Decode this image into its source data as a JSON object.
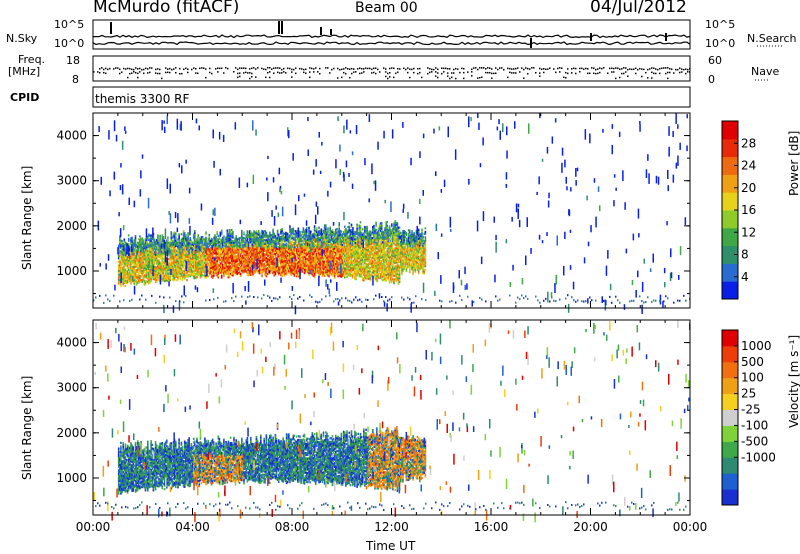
{
  "header": {
    "station": "McMurdo (fitACF)",
    "beam": "Beam 00",
    "date": "04/Jul/2012"
  },
  "params": {
    "nsky_label": "N.Sky",
    "nsearch_label": "N.Search",
    "nsky_ticks": [
      "10^5",
      "10^0"
    ],
    "nsearch_ticks": [
      "10^5",
      "10^0"
    ],
    "freq_label_1": "Freq.",
    "freq_label_2": "[MHz]",
    "freq_ticks": [
      "18",
      "8"
    ],
    "nave_label": "Nave",
    "nave_ticks": [
      "60",
      "0"
    ],
    "cpid_label": "CPID",
    "cpid_text": "themis 3300 RF"
  },
  "chart_data": [
    {
      "type": "heatmap",
      "panel": "power",
      "title": "",
      "xlabel": "Time UT",
      "ylabel": "Slant Range [km]",
      "x_ticks": [
        "00:00",
        "04:00",
        "08:00",
        "12:00",
        "16:00",
        "20:00",
        "00:00"
      ],
      "y_ticks": [
        "1000",
        "2000",
        "3000",
        "4000"
      ],
      "ylim": [
        180,
        4500
      ],
      "colorbar": {
        "label": "Power [dB]",
        "ticks": [
          "4",
          "8",
          "12",
          "16",
          "20",
          "24",
          "28"
        ],
        "colors": [
          "#0a1fe6",
          "#2a6bd0",
          "#2e8f6a",
          "#3fa745",
          "#8fcc2a",
          "#e6d21a",
          "#f0a015",
          "#ee6a10",
          "#e82a08",
          "#e00000"
        ]
      },
      "echo_region": {
        "time_start": "01:00",
        "time_end": "13:20",
        "range_km": [
          600,
          2200
        ]
      }
    },
    {
      "type": "heatmap",
      "panel": "velocity",
      "title": "",
      "xlabel": "Time UT",
      "ylabel": "Slant Range [km]",
      "x_ticks": [
        "00:00",
        "04:00",
        "08:00",
        "12:00",
        "16:00",
        "20:00",
        "00:00"
      ],
      "y_ticks": [
        "1000",
        "2000",
        "3000",
        "4000"
      ],
      "ylim": [
        180,
        4500
      ],
      "colorbar": {
        "label": "Velocity [m s⁻¹]",
        "ticks": [
          "1000",
          "500",
          "100",
          "25",
          "-25",
          "-100",
          "-500",
          "-1000"
        ],
        "colors": [
          "#1a2fd0",
          "#1f5fcf",
          "#2e8b72",
          "#3ea84a",
          "#7fd23a",
          "#cfcfcf",
          "#f5d020",
          "#f0a015",
          "#f07010",
          "#ee3d08",
          "#e00000"
        ]
      },
      "echo_region": {
        "time_start": "01:00",
        "time_end": "13:20",
        "range_km": [
          600,
          2200
        ]
      }
    }
  ]
}
